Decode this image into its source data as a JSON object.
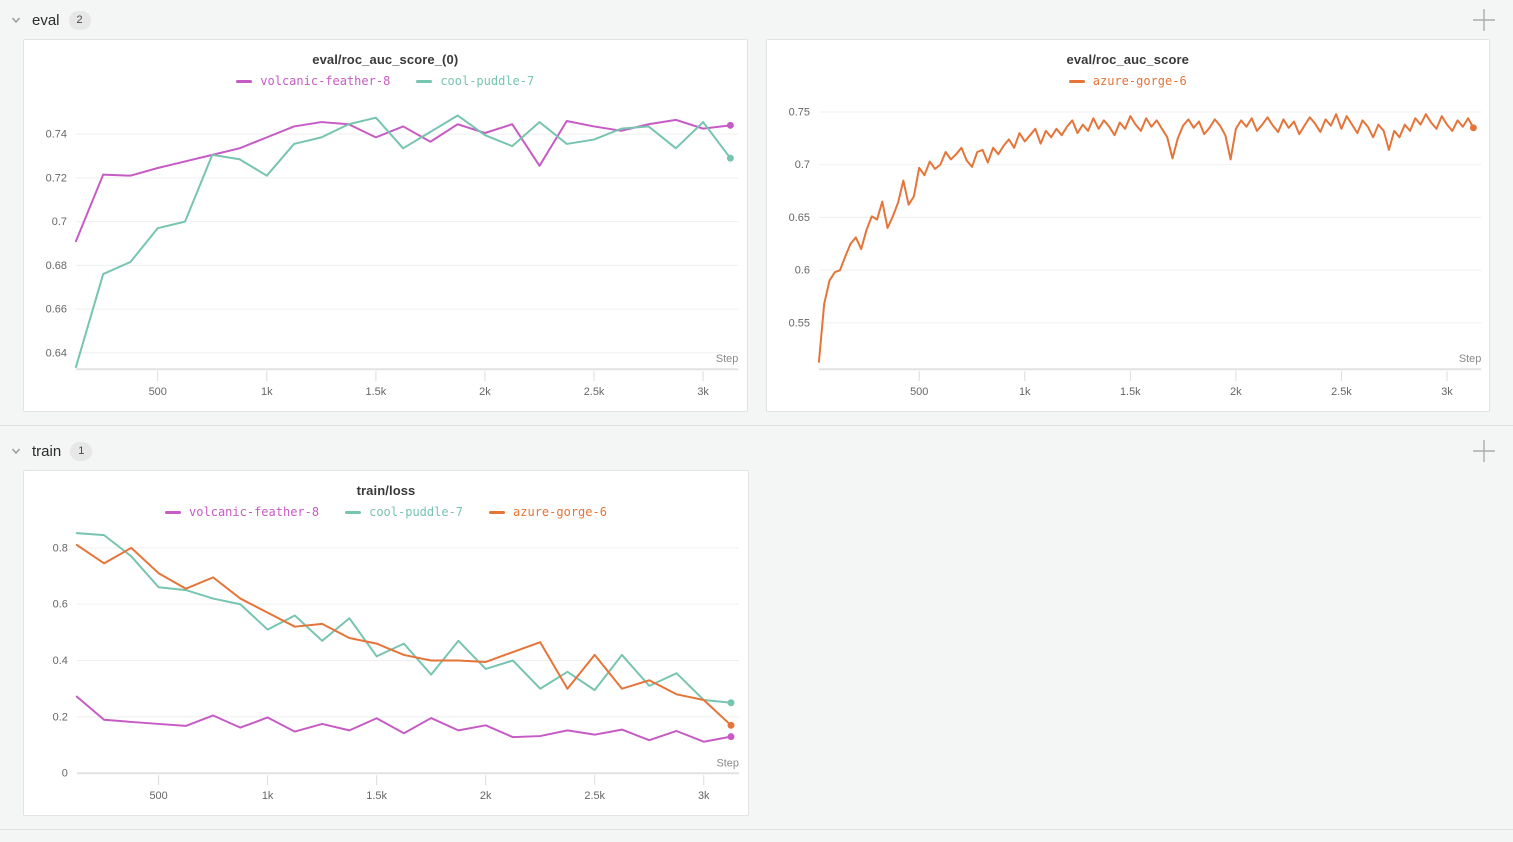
{
  "sections": [
    {
      "label": "eval",
      "count": "2"
    },
    {
      "label": "train",
      "count": "1"
    }
  ],
  "icons": {
    "collapse": "chevron-down-icon",
    "add_panel": "plus-icon"
  },
  "ui_colors": {
    "page_bg": "#f4f5f5",
    "panel_bg": "#ffffff",
    "panel_border": "#e3e3e3",
    "grid": "#efefef",
    "axis": "#e2e2e2",
    "tick_text": "#666666"
  },
  "chart_data": [
    {
      "type": "line",
      "title": "eval/roc_auc_score_(0)",
      "xlabel": "Step",
      "grid": "horizontal",
      "legend_position": "top",
      "xlim": [
        125,
        3125
      ],
      "ylim": [
        0.6325,
        0.753
      ],
      "yticks": [
        {
          "v": 0.64,
          "l": "0.64"
        },
        {
          "v": 0.66,
          "l": "0.66"
        },
        {
          "v": 0.68,
          "l": "0.68"
        },
        {
          "v": 0.7,
          "l": "0.7"
        },
        {
          "v": 0.72,
          "l": "0.72"
        },
        {
          "v": 0.74,
          "l": "0.74"
        }
      ],
      "xticks": [
        {
          "v": 500,
          "l": "500"
        },
        {
          "v": 1000,
          "l": "1k"
        },
        {
          "v": 1500,
          "l": "1.5k"
        },
        {
          "v": 2000,
          "l": "2k"
        },
        {
          "v": 2500,
          "l": "2.5k"
        },
        {
          "v": 3000,
          "l": "3k"
        }
      ],
      "series": [
        {
          "name": "volcanic-feather-8",
          "color": "#C75BC5",
          "x_start": 125,
          "x_step": 125,
          "y": [
            0.691,
            0.7215,
            0.721,
            0.7245,
            0.7275,
            0.7305,
            0.7335,
            0.7385,
            0.7435,
            0.7455,
            0.7445,
            0.7385,
            0.7435,
            0.7365,
            0.7445,
            0.7405,
            0.7445,
            0.7255,
            0.746,
            0.7435,
            0.7415,
            0.7445,
            0.7465,
            0.7425,
            0.744
          ]
        },
        {
          "name": "cool-puddle-7",
          "color": "#77C4B0",
          "x_start": 125,
          "x_step": 125,
          "y": [
            0.6335,
            0.676,
            0.6815,
            0.697,
            0.7,
            0.7305,
            0.7285,
            0.721,
            0.7355,
            0.7385,
            0.7445,
            0.7475,
            0.7335,
            0.741,
            0.7485,
            0.7395,
            0.7345,
            0.7455,
            0.7355,
            0.7375,
            0.7425,
            0.7435,
            0.7335,
            0.7455,
            0.729
          ]
        }
      ]
    },
    {
      "type": "line",
      "title": "eval/roc_auc_score",
      "xlabel": "Step",
      "grid": "horizontal",
      "legend_position": "top",
      "xlim": [
        25,
        3125
      ],
      "ylim": [
        0.506,
        0.756
      ],
      "yticks": [
        {
          "v": 0.55,
          "l": "0.55"
        },
        {
          "v": 0.6,
          "l": "0.6"
        },
        {
          "v": 0.65,
          "l": "0.65"
        },
        {
          "v": 0.7,
          "l": "0.7"
        },
        {
          "v": 0.75,
          "l": "0.75"
        }
      ],
      "xticks": [
        {
          "v": 500,
          "l": "500"
        },
        {
          "v": 1000,
          "l": "1k"
        },
        {
          "v": 1500,
          "l": "1.5k"
        },
        {
          "v": 2000,
          "l": "2k"
        },
        {
          "v": 2500,
          "l": "2.5k"
        },
        {
          "v": 3000,
          "l": "3k"
        }
      ],
      "series": [
        {
          "name": "azure-gorge-6",
          "color": "#E57439",
          "x_start": 25,
          "x_step": 25,
          "y": [
            0.513,
            0.568,
            0.59,
            0.598,
            0.6,
            0.613,
            0.625,
            0.631,
            0.62,
            0.638,
            0.651,
            0.648,
            0.665,
            0.64,
            0.651,
            0.664,
            0.685,
            0.662,
            0.67,
            0.697,
            0.69,
            0.703,
            0.696,
            0.7,
            0.712,
            0.705,
            0.71,
            0.716,
            0.704,
            0.698,
            0.712,
            0.714,
            0.702,
            0.716,
            0.71,
            0.718,
            0.724,
            0.716,
            0.73,
            0.722,
            0.728,
            0.734,
            0.72,
            0.732,
            0.726,
            0.734,
            0.728,
            0.736,
            0.742,
            0.73,
            0.738,
            0.732,
            0.744,
            0.734,
            0.742,
            0.736,
            0.728,
            0.74,
            0.734,
            0.746,
            0.738,
            0.732,
            0.744,
            0.736,
            0.742,
            0.734,
            0.726,
            0.706,
            0.725,
            0.737,
            0.743,
            0.735,
            0.741,
            0.729,
            0.735,
            0.743,
            0.737,
            0.728,
            0.705,
            0.734,
            0.742,
            0.736,
            0.744,
            0.732,
            0.738,
            0.745,
            0.737,
            0.731,
            0.743,
            0.735,
            0.741,
            0.729,
            0.737,
            0.745,
            0.739,
            0.731,
            0.743,
            0.737,
            0.748,
            0.734,
            0.746,
            0.738,
            0.73,
            0.742,
            0.736,
            0.726,
            0.738,
            0.732,
            0.714,
            0.732,
            0.726,
            0.738,
            0.732,
            0.744,
            0.738,
            0.748,
            0.74,
            0.734,
            0.746,
            0.738,
            0.732,
            0.742,
            0.736,
            0.744,
            0.735
          ]
        }
      ]
    },
    {
      "type": "line",
      "title": "train/loss",
      "xlabel": "Step",
      "grid": "horizontal",
      "legend_position": "top",
      "xlim": [
        125,
        3125
      ],
      "ylim": [
        0,
        0.868
      ],
      "yticks": [
        {
          "v": 0,
          "l": "0"
        },
        {
          "v": 0.2,
          "l": "0.2"
        },
        {
          "v": 0.4,
          "l": "0.4"
        },
        {
          "v": 0.6,
          "l": "0.6"
        },
        {
          "v": 0.8,
          "l": "0.8"
        }
      ],
      "xticks": [
        {
          "v": 500,
          "l": "500"
        },
        {
          "v": 1000,
          "l": "1k"
        },
        {
          "v": 1500,
          "l": "1.5k"
        },
        {
          "v": 2000,
          "l": "2k"
        },
        {
          "v": 2500,
          "l": "2.5k"
        },
        {
          "v": 3000,
          "l": "3k"
        }
      ],
      "series": [
        {
          "name": "volcanic-feather-8",
          "color": "#C75BC5",
          "x_start": 125,
          "x_step": 125,
          "y": [
            0.272,
            0.19,
            0.182,
            0.175,
            0.168,
            0.205,
            0.162,
            0.198,
            0.148,
            0.175,
            0.152,
            0.195,
            0.142,
            0.196,
            0.152,
            0.17,
            0.128,
            0.132,
            0.152,
            0.137,
            0.155,
            0.117,
            0.15,
            0.112,
            0.13
          ]
        },
        {
          "name": "cool-puddle-7",
          "color": "#77C4B0",
          "x_start": 125,
          "x_step": 125,
          "y": [
            0.852,
            0.845,
            0.77,
            0.66,
            0.65,
            0.62,
            0.6,
            0.51,
            0.56,
            0.47,
            0.55,
            0.415,
            0.46,
            0.35,
            0.47,
            0.37,
            0.4,
            0.3,
            0.36,
            0.295,
            0.42,
            0.31,
            0.355,
            0.26,
            0.25
          ]
        },
        {
          "name": "azure-gorge-6",
          "color": "#E57439",
          "x_start": 125,
          "x_step": 125,
          "y": [
            0.81,
            0.745,
            0.8,
            0.71,
            0.655,
            0.695,
            0.62,
            0.57,
            0.52,
            0.53,
            0.48,
            0.46,
            0.42,
            0.4,
            0.4,
            0.395,
            0.43,
            0.465,
            0.3,
            0.42,
            0.3,
            0.33,
            0.28,
            0.26,
            0.17
          ]
        }
      ]
    }
  ]
}
